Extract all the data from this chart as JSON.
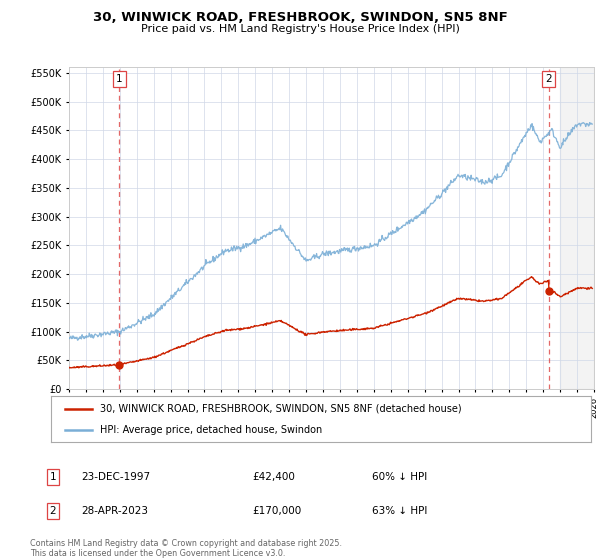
{
  "title_line1": "30, WINWICK ROAD, FRESHBROOK, SWINDON, SN5 8NF",
  "title_line2": "Price paid vs. HM Land Registry's House Price Index (HPI)",
  "legend_label_red": "30, WINWICK ROAD, FRESHBROOK, SWINDON, SN5 8NF (detached house)",
  "legend_label_blue": "HPI: Average price, detached house, Swindon",
  "annotation1_label": "1",
  "annotation1_date": "23-DEC-1997",
  "annotation1_price": "£42,400",
  "annotation1_hpi": "60% ↓ HPI",
  "annotation2_label": "2",
  "annotation2_date": "28-APR-2023",
  "annotation2_price": "£170,000",
  "annotation2_hpi": "63% ↓ HPI",
  "footer": "Contains HM Land Registry data © Crown copyright and database right 2025.\nThis data is licensed under the Open Government Licence v3.0.",
  "red_color": "#cc2200",
  "blue_color": "#7aaed6",
  "background_color": "#ffffff",
  "plot_background": "#ffffff",
  "grid_color": "#d0d8e8",
  "dashed_line_color": "#dd4444",
  "ylim_min": 0,
  "ylim_max": 560000,
  "sale1_year": 1997.97,
  "sale1_price": 42400,
  "sale2_year": 2023.32,
  "sale2_price": 170000
}
